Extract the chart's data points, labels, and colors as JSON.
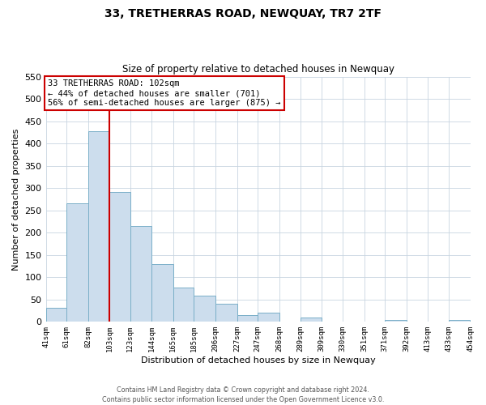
{
  "title": "33, TRETHERRAS ROAD, NEWQUAY, TR7 2TF",
  "subtitle": "Size of property relative to detached houses in Newquay",
  "xlabel": "Distribution of detached houses by size in Newquay",
  "ylabel": "Number of detached properties",
  "bar_color": "#ccdded",
  "bar_edge_color": "#7aafc8",
  "grid_color": "#c8d4e0",
  "vline_color": "#cc0000",
  "bin_edges": [
    41,
    61,
    82,
    103,
    123,
    144,
    165,
    185,
    206,
    227,
    247,
    268,
    289,
    309,
    330,
    351,
    371,
    392,
    413,
    433,
    454
  ],
  "counts": [
    32,
    265,
    428,
    292,
    215,
    130,
    76,
    59,
    40,
    15,
    20,
    0,
    10,
    0,
    0,
    0,
    5,
    0,
    0,
    5
  ],
  "tick_labels": [
    "41sqm",
    "61sqm",
    "82sqm",
    "103sqm",
    "123sqm",
    "144sqm",
    "165sqm",
    "185sqm",
    "206sqm",
    "227sqm",
    "247sqm",
    "268sqm",
    "289sqm",
    "309sqm",
    "330sqm",
    "351sqm",
    "371sqm",
    "392sqm",
    "413sqm",
    "433sqm",
    "454sqm"
  ],
  "ylim": [
    0,
    550
  ],
  "yticks": [
    0,
    50,
    100,
    150,
    200,
    250,
    300,
    350,
    400,
    450,
    500,
    550
  ],
  "annotation_title": "33 TRETHERRAS ROAD: 102sqm",
  "annotation_line1": "← 44% of detached houses are smaller (701)",
  "annotation_line2": "56% of semi-detached houses are larger (875) →",
  "footer1": "Contains HM Land Registry data © Crown copyright and database right 2024.",
  "footer2": "Contains public sector information licensed under the Open Government Licence v3.0."
}
